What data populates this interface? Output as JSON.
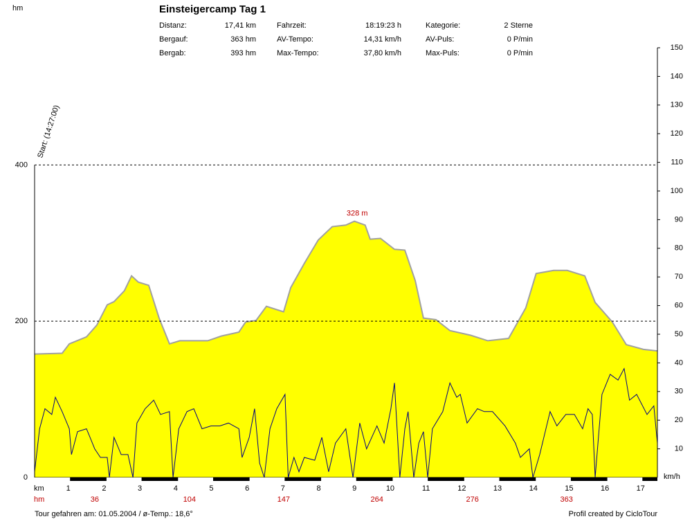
{
  "chart_data": {
    "type": "profile",
    "title": "Einsteigercamp Tag 1",
    "stats": [
      [
        "Distanz:",
        "17,41 km",
        "Fahrzeit:",
        "18:19:23 h",
        "Kategorie:",
        "2 Sterne"
      ],
      [
        "Bergauf:",
        "363 hm",
        "AV-Tempo:",
        "14,31 km/h",
        "AV-Puls:",
        "0 P/min"
      ],
      [
        "Bergab:",
        "393 hm",
        "Max-Tempo:",
        "37,80 km/h",
        "Max-Puls:",
        "0 P/min"
      ]
    ],
    "y_label": "hm",
    "y2_label": "km/h",
    "x_label": "km",
    "climb_label": "hm",
    "start_annotation": "Start: (14:27:00)",
    "peak_label": "328 m",
    "footer_left": "Tour gefahren am: 01.05.2004  /  ø-Temp.: 18,6°",
    "footer_right": "Profil created by CicloTour",
    "xlim": [
      0,
      17.41
    ],
    "xticks": [
      1,
      2,
      3,
      4,
      5,
      6,
      7,
      8,
      9,
      10,
      11,
      12,
      13,
      14,
      15,
      16,
      17
    ],
    "ylim": [
      0,
      550
    ],
    "yticks": [
      0,
      200,
      400
    ],
    "y2lim": [
      0,
      150
    ],
    "y2ticks": [
      10,
      20,
      30,
      40,
      50,
      60,
      70,
      80,
      90,
      100,
      110,
      120,
      130,
      140,
      150
    ],
    "grid": true,
    "series": [
      {
        "name": "Höhe",
        "color": "#ffff00",
        "line_color": "#a0a0a0",
        "x": [
          0,
          0.77,
          0.97,
          1.45,
          1.74,
          2.03,
          2.22,
          2.51,
          2.71,
          2.9,
          3.19,
          3.48,
          3.77,
          4.06,
          4.84,
          5.22,
          5.71,
          5.9,
          6.19,
          6.48,
          6.96,
          7.16,
          7.54,
          7.93,
          8.32,
          8.7,
          8.94,
          9.24,
          9.38,
          9.67,
          10.06,
          10.35,
          10.64,
          10.87,
          11.22,
          11.61,
          12.19,
          12.67,
          13.25,
          13.73,
          14.02,
          14.51,
          14.89,
          15.38,
          15.67,
          16.15,
          16.54,
          17.02,
          17.41
        ],
        "values": [
          158,
          159,
          171,
          180,
          195,
          221,
          225,
          239,
          258,
          250,
          246,
          204,
          171,
          175,
          175,
          181,
          186,
          199,
          201,
          219,
          212,
          243,
          274,
          304,
          321,
          323,
          328,
          323,
          305,
          306,
          292,
          291,
          252,
          204,
          202,
          188,
          182,
          175,
          178,
          217,
          261,
          265,
          265,
          258,
          224,
          199,
          170,
          164,
          162
        ]
      },
      {
        "name": "Tempo",
        "color": "#000080",
        "axis": "y2",
        "x": [
          0,
          0.14,
          0.29,
          0.48,
          0.58,
          0.77,
          0.97,
          1.03,
          1.2,
          1.45,
          1.55,
          1.68,
          1.84,
          2.03,
          2.09,
          2.22,
          2.42,
          2.61,
          2.75,
          2.86,
          3.09,
          3.33,
          3.52,
          3.77,
          3.87,
          4.03,
          4.26,
          4.45,
          4.68,
          4.93,
          5.18,
          5.42,
          5.71,
          5.8,
          6,
          6.15,
          6.29,
          6.42,
          6.58,
          6.77,
          7,
          7.09,
          7.25,
          7.39,
          7.54,
          7.83,
          8.03,
          8.22,
          8.41,
          8.7,
          8.9,
          9.09,
          9.28,
          9.57,
          9.77,
          9.96,
          10.06,
          10.21,
          10.35,
          10.44,
          10.6,
          10.74,
          10.87,
          10.99,
          11.12,
          11.41,
          11.61,
          11.8,
          11.9,
          12.09,
          12.38,
          12.57,
          12.8,
          13.15,
          13.44,
          13.58,
          13.83,
          13.93,
          14.12,
          14.41,
          14.6,
          14.85,
          15.09,
          15.32,
          15.47,
          15.59,
          15.67,
          15.86,
          16.09,
          16.31,
          16.48,
          16.63,
          16.83,
          17.12,
          17.31,
          17.41
        ],
        "values": [
          2,
          17,
          24,
          22,
          28,
          23,
          17,
          8,
          16,
          17,
          14,
          10,
          7,
          7,
          0,
          14,
          8,
          8,
          0,
          19,
          24,
          27,
          22,
          23,
          0,
          17,
          23,
          24,
          17,
          18,
          18,
          19,
          17,
          7,
          14,
          24,
          5,
          0,
          17,
          24,
          29,
          0,
          7,
          2,
          7,
          6,
          14,
          2,
          12,
          17,
          0,
          19,
          10,
          18,
          12,
          24,
          33,
          0,
          17,
          23,
          0,
          12,
          16,
          0,
          17,
          23,
          33,
          28,
          29,
          19,
          24,
          23,
          23,
          18,
          12,
          7,
          10,
          0,
          8,
          23,
          18,
          22,
          22,
          17,
          24,
          22,
          0,
          29,
          36,
          34,
          38,
          27,
          29,
          22,
          25,
          12
        ]
      }
    ],
    "climb": {
      "color": "#c00000",
      "x": [
        1.68,
        4.33,
        6.96,
        9.57,
        12.24,
        14.87
      ],
      "values": [
        36,
        104,
        147,
        264,
        276,
        363
      ]
    }
  }
}
